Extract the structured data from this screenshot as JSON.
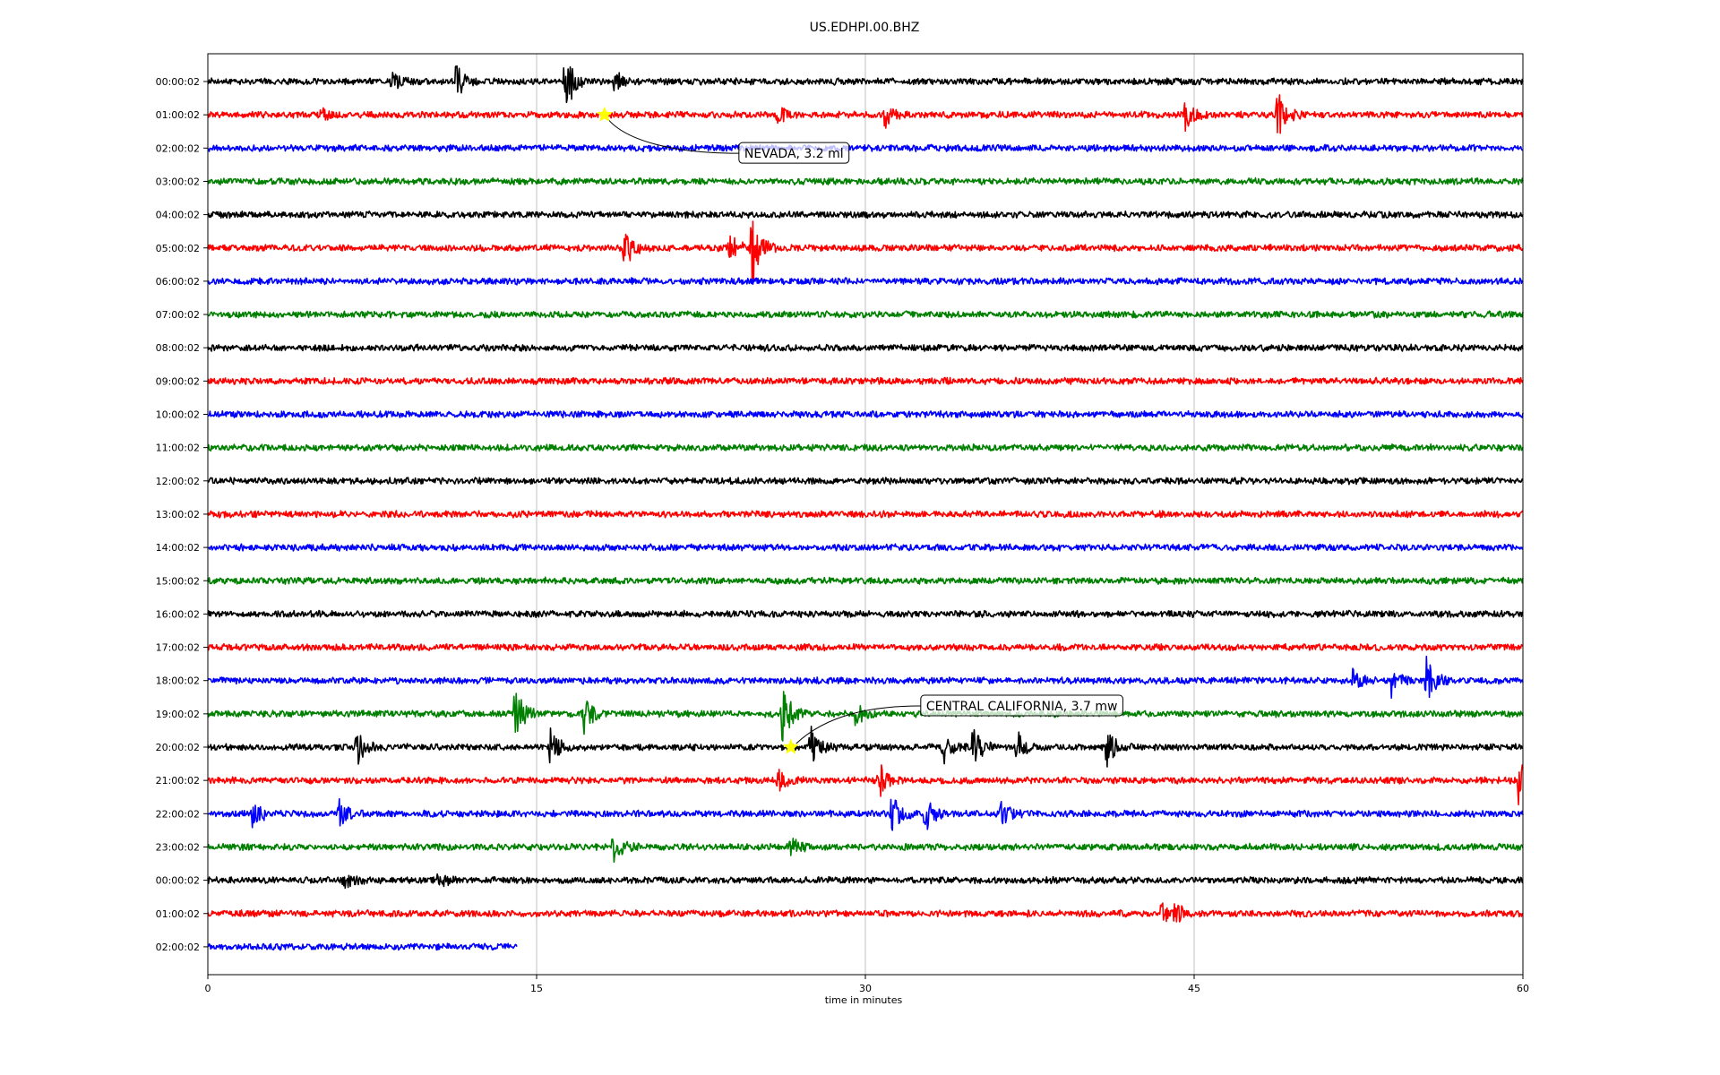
{
  "chart_data": {
    "type": "line",
    "title": "US.EDHPI.00.BHZ",
    "xlabel": "time in minutes",
    "ylabel": "",
    "xlim": [
      0,
      60
    ],
    "x_ticks": [
      0,
      15,
      30,
      45,
      60
    ],
    "x_tick_labels": [
      "0",
      "15",
      "30",
      "45",
      "60"
    ],
    "grid": "vertical",
    "row_labels": [
      "00:00:02",
      "01:00:02",
      "02:00:02",
      "03:00:02",
      "04:00:02",
      "05:00:02",
      "06:00:02",
      "07:00:02",
      "08:00:02",
      "09:00:02",
      "10:00:02",
      "11:00:02",
      "12:00:02",
      "13:00:02",
      "14:00:02",
      "15:00:02",
      "16:00:02",
      "17:00:02",
      "18:00:02",
      "19:00:02",
      "20:00:02",
      "21:00:02",
      "22:00:02",
      "23:00:02",
      "00:00:02",
      "01:00:02",
      "02:00:02"
    ],
    "trace_colors": [
      "#000000",
      "#ff0000",
      "#0000ff",
      "#008000"
    ],
    "last_row_end_minute": 14.1,
    "events": [
      {
        "row": 0,
        "minute": 8.4,
        "amp": 0.45
      },
      {
        "row": 0,
        "minute": 11.3,
        "amp": 0.85
      },
      {
        "row": 0,
        "minute": 16.3,
        "amp": 1.6
      },
      {
        "row": 0,
        "minute": 18.5,
        "amp": 0.6
      },
      {
        "row": 1,
        "minute": 5.2,
        "amp": 0.35
      },
      {
        "row": 1,
        "minute": 26.0,
        "amp": 0.4
      },
      {
        "row": 1,
        "minute": 30.9,
        "amp": 0.55
      },
      {
        "row": 1,
        "minute": 44.6,
        "amp": 0.65
      },
      {
        "row": 1,
        "minute": 48.8,
        "amp": 1.2
      },
      {
        "row": 5,
        "minute": 19.0,
        "amp": 1.0
      },
      {
        "row": 5,
        "minute": 23.8,
        "amp": 0.7
      },
      {
        "row": 5,
        "minute": 24.8,
        "amp": 2.0
      },
      {
        "row": 18,
        "minute": 52.2,
        "amp": 0.5
      },
      {
        "row": 18,
        "minute": 54.0,
        "amp": 0.7
      },
      {
        "row": 18,
        "minute": 55.6,
        "amp": 1.0
      },
      {
        "row": 19,
        "minute": 14.0,
        "amp": 1.2
      },
      {
        "row": 19,
        "minute": 17.1,
        "amp": 1.0
      },
      {
        "row": 19,
        "minute": 26.2,
        "amp": 1.4
      },
      {
        "row": 19,
        "minute": 29.5,
        "amp": 0.6
      },
      {
        "row": 20,
        "minute": 6.8,
        "amp": 0.9
      },
      {
        "row": 20,
        "minute": 15.6,
        "amp": 0.8
      },
      {
        "row": 20,
        "minute": 27.5,
        "amp": 1.1
      },
      {
        "row": 20,
        "minute": 33.5,
        "amp": 0.9
      },
      {
        "row": 20,
        "minute": 34.9,
        "amp": 0.9
      },
      {
        "row": 20,
        "minute": 36.9,
        "amp": 0.8
      },
      {
        "row": 20,
        "minute": 41.0,
        "amp": 0.9
      },
      {
        "row": 21,
        "minute": 26.0,
        "amp": 0.5
      },
      {
        "row": 21,
        "minute": 30.6,
        "amp": 0.9
      },
      {
        "row": 21,
        "minute": 59.8,
        "amp": 1.0
      },
      {
        "row": 22,
        "minute": 2.0,
        "amp": 0.8
      },
      {
        "row": 22,
        "minute": 6.0,
        "amp": 0.6
      },
      {
        "row": 22,
        "minute": 31.2,
        "amp": 0.9
      },
      {
        "row": 22,
        "minute": 32.7,
        "amp": 1.0
      },
      {
        "row": 22,
        "minute": 36.2,
        "amp": 0.6
      },
      {
        "row": 23,
        "minute": 18.5,
        "amp": 0.9
      },
      {
        "row": 23,
        "minute": 26.6,
        "amp": 0.5
      },
      {
        "row": 24,
        "minute": 6.2,
        "amp": 0.4
      },
      {
        "row": 24,
        "minute": 10.4,
        "amp": 0.4
      },
      {
        "row": 25,
        "minute": 43.5,
        "amp": 0.6
      },
      {
        "row": 25,
        "minute": 44.1,
        "amp": 0.5
      }
    ],
    "annotations": [
      {
        "row": 1,
        "minute": 18.1,
        "label": "NEVADA, 3.2 ml"
      },
      {
        "row": 20,
        "minute": 26.6,
        "label": "CENTRAL CALIFORNIA, 3.7 mw"
      }
    ],
    "marker_color": "#ffff00"
  }
}
